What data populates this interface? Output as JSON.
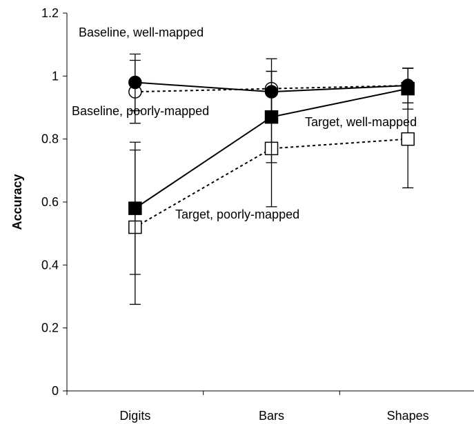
{
  "chart_data": {
    "type": "line",
    "categories": [
      "Digits",
      "Bars",
      "Shapes"
    ],
    "ylabel": "Accuracy",
    "xlabel": "",
    "ylim": [
      0,
      1.2
    ],
    "yticks": [
      "0",
      "0.2",
      "0.4",
      "0.6",
      "0.8",
      "1",
      "1.2"
    ],
    "grid": false,
    "series": [
      {
        "name": "Baseline, well-mapped",
        "values": [
          0.98,
          0.95,
          0.97
        ],
        "error": [
          0.09,
          0.065,
          0.055
        ],
        "marker": "circle",
        "fill": "#000000",
        "line": "solid"
      },
      {
        "name": "Baseline, poorly-mapped",
        "values": [
          0.95,
          0.96,
          0.97
        ],
        "error": [
          0.1,
          0.095,
          0.055
        ],
        "marker": "circle",
        "fill": "#ffffff",
        "line": "dotted"
      },
      {
        "name": "Target, well-mapped",
        "values": [
          0.58,
          0.87,
          0.96
        ],
        "error": [
          0.21,
          0.145,
          0.065
        ],
        "marker": "square",
        "fill": "#000000",
        "line": "solid"
      },
      {
        "name": "Target, poorly-mapped",
        "values": [
          0.52,
          0.77,
          0.8
        ],
        "error": [
          0.245,
          0.185,
          0.155
        ],
        "marker": "square",
        "fill": "#ffffff",
        "line": "dotted"
      }
    ],
    "annotations": [
      "Baseline, well-mapped",
      "Baseline, poorly-mapped",
      "Target, well-mapped",
      "Target, poorly-mapped"
    ]
  }
}
